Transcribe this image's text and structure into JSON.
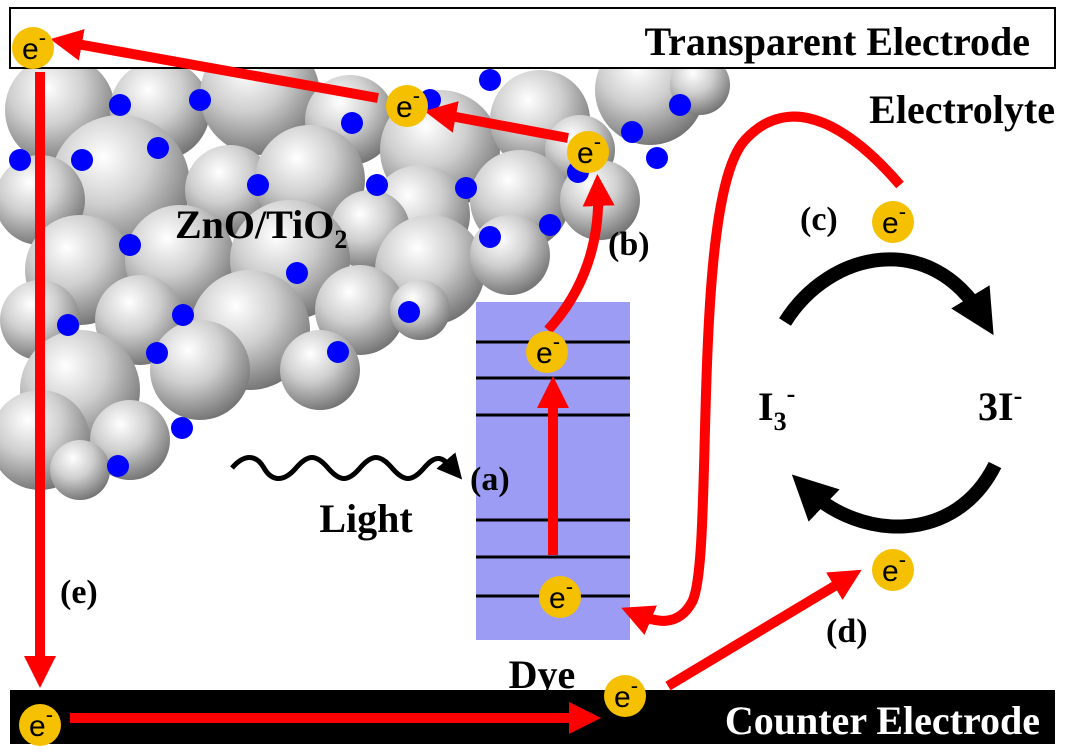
{
  "electrodes": {
    "top": "Transparent Electrode",
    "bottom": "Counter Electrode"
  },
  "electrolyte": "Electrolyte",
  "semiconductor": {
    "name": "ZnO/TiO",
    "subscript": "2"
  },
  "steps": [
    "(a)",
    "(b)",
    "(c)",
    "(d)",
    "(e)"
  ],
  "light": "Light",
  "dye": "Dye",
  "ions": {
    "triiodide": {
      "base": "I",
      "subscript": "3",
      "superscript": "-"
    },
    "iodide": {
      "base": "3I",
      "superscript": "-"
    }
  },
  "electron": {
    "symbol": "e",
    "charge": "-"
  }
}
